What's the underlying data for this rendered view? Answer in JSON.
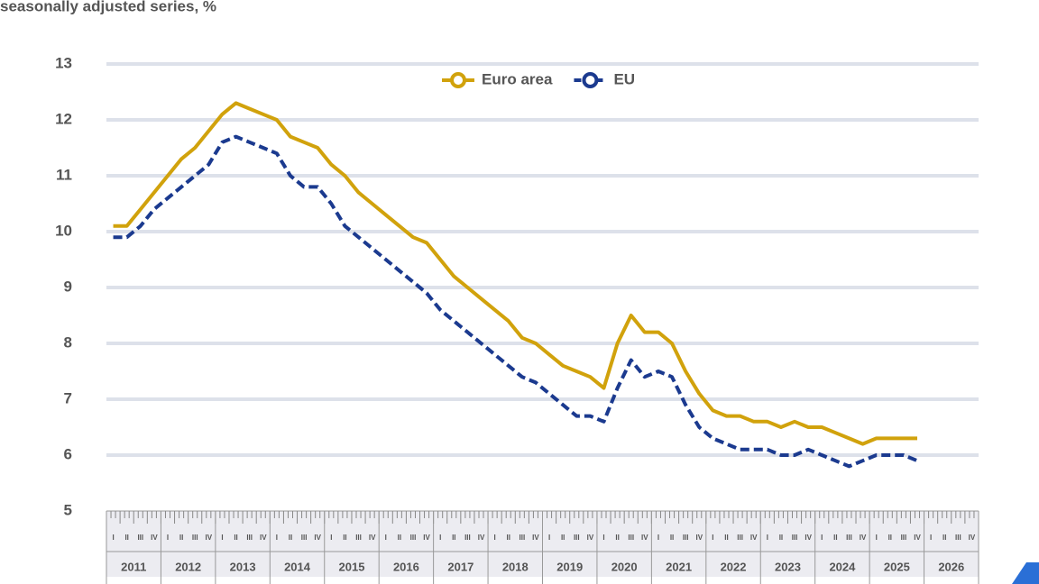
{
  "chart_data": {
    "type": "line",
    "subtitle": "seasonally adjusted series, %",
    "categories": [
      "I",
      "II",
      "III",
      "IV",
      "I",
      "II",
      "III",
      "IV",
      "I",
      "II",
      "III",
      "IV",
      "I",
      "II",
      "III",
      "IV",
      "I",
      "II",
      "III",
      "IV",
      "I",
      "II",
      "III",
      "IV",
      "I",
      "II",
      "III",
      "IV",
      "I",
      "II",
      "III",
      "IV",
      "I",
      "II",
      "III",
      "IV",
      "I",
      "II",
      "III",
      "IV",
      "I",
      "II",
      "III",
      "IV",
      "I",
      "II",
      "III",
      "IV",
      "I",
      "II",
      "III",
      "IV",
      "I",
      "II",
      "III",
      "IV",
      "I",
      "II",
      "III",
      "IV",
      "I",
      "II",
      "III",
      "IV"
    ],
    "x_groups": [
      "2011",
      "2012",
      "2013",
      "2014",
      "2015",
      "2016",
      "2017",
      "2018",
      "2019",
      "2020",
      "2021",
      "2022",
      "2023",
      "2024",
      "2025",
      "2026"
    ],
    "series": [
      {
        "name": "Euro area",
        "color": "#d1a20c",
        "dash": false,
        "values": [
          10.1,
          10.1,
          10.4,
          10.7,
          11.0,
          11.3,
          11.5,
          11.8,
          12.1,
          12.3,
          12.2,
          12.1,
          12.0,
          11.7,
          11.6,
          11.5,
          11.2,
          11.0,
          10.7,
          10.5,
          10.3,
          10.1,
          9.9,
          9.8,
          9.5,
          9.2,
          9.0,
          8.8,
          8.6,
          8.4,
          8.1,
          8.0,
          7.8,
          7.6,
          7.5,
          7.4,
          7.2,
          8.0,
          8.5,
          8.2,
          8.2,
          8.0,
          7.5,
          7.1,
          6.8,
          6.7,
          6.7,
          6.6,
          6.6,
          6.5,
          6.6,
          6.5,
          6.5,
          6.4,
          6.3,
          6.2,
          6.3,
          6.3,
          6.3,
          6.3,
          null,
          null,
          null,
          null
        ]
      },
      {
        "name": "EU",
        "color": "#1b3a8f",
        "dash": true,
        "values": [
          9.9,
          9.9,
          10.1,
          10.4,
          10.6,
          10.8,
          11.0,
          11.2,
          11.6,
          11.7,
          11.6,
          11.5,
          11.4,
          11.0,
          10.8,
          10.8,
          10.5,
          10.1,
          9.9,
          9.7,
          9.5,
          9.3,
          9.1,
          8.9,
          8.6,
          8.4,
          8.2,
          8.0,
          7.8,
          7.6,
          7.4,
          7.3,
          7.1,
          6.9,
          6.7,
          6.7,
          6.6,
          7.2,
          7.7,
          7.4,
          7.5,
          7.4,
          6.9,
          6.5,
          6.3,
          6.2,
          6.1,
          6.1,
          6.1,
          6.0,
          6.0,
          6.1,
          6.0,
          5.9,
          5.8,
          5.9,
          6.0,
          6.0,
          6.0,
          5.9,
          null,
          null,
          null,
          null
        ]
      }
    ],
    "ylim": [
      5,
      13
    ],
    "yticks": [
      5,
      6,
      7,
      8,
      9,
      10,
      11,
      12,
      13
    ],
    "grid": true,
    "legend": "top"
  }
}
